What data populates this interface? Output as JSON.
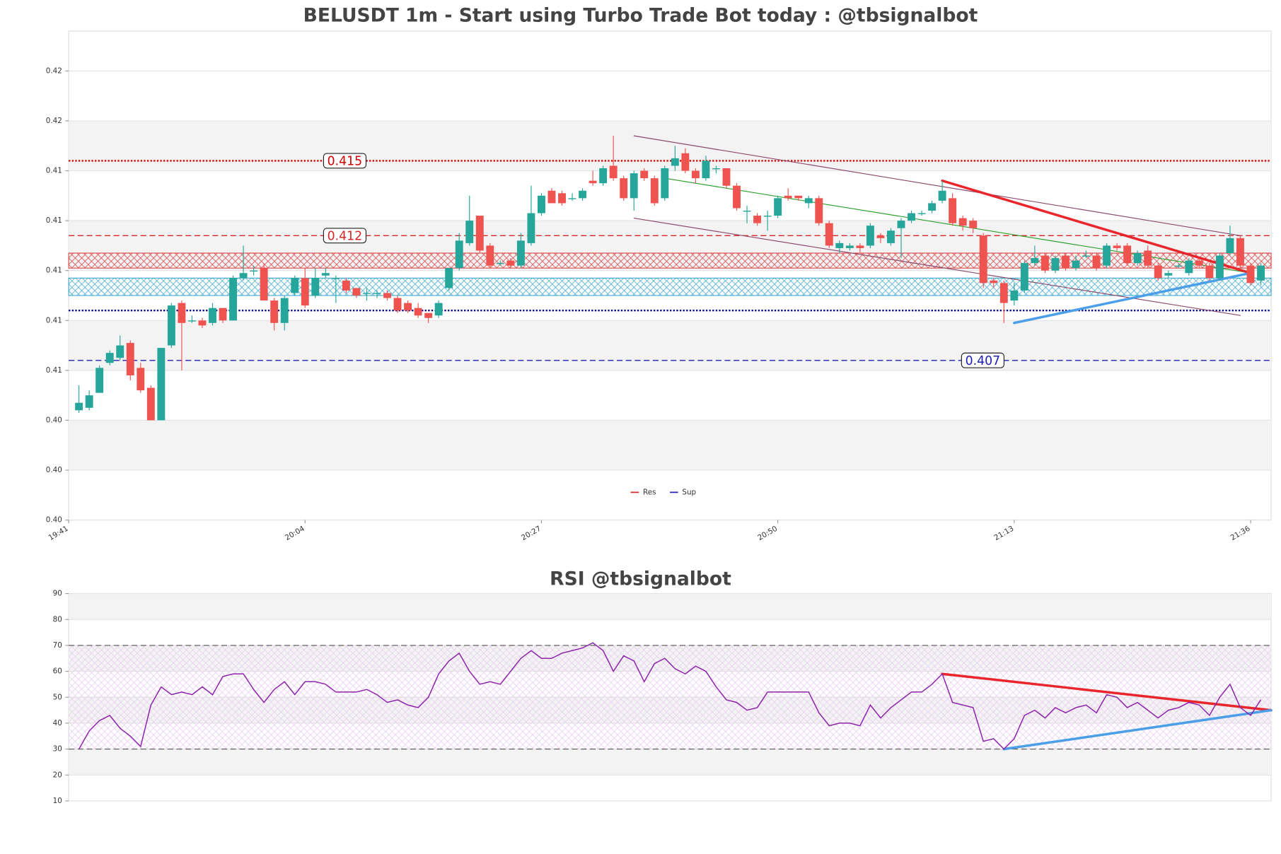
{
  "chart_data": [
    {
      "type": "candlestick",
      "title": "BELUSDT 1m - Start using Turbo Trade Bot today : @tbsignalbot",
      "x": [
        "19:42",
        "19:43",
        "19:44",
        "19:45",
        "19:46",
        "19:47",
        "19:48",
        "19:49",
        "19:50",
        "19:51",
        "19:52",
        "19:53",
        "19:54",
        "19:55",
        "19:56",
        "19:57",
        "19:58",
        "19:59",
        "20:00",
        "20:01",
        "20:02",
        "20:03",
        "20:04",
        "20:05",
        "20:06",
        "20:07",
        "20:08",
        "20:09",
        "20:10",
        "20:11",
        "20:12",
        "20:13",
        "20:14",
        "20:15",
        "20:16",
        "20:17",
        "20:18",
        "20:19",
        "20:20",
        "20:21",
        "20:22",
        "20:23",
        "20:24",
        "20:25",
        "20:26",
        "20:27",
        "20:28",
        "20:29",
        "20:30",
        "20:31",
        "20:32",
        "20:33",
        "20:34",
        "20:35",
        "20:36",
        "20:37",
        "20:38",
        "20:39",
        "20:40",
        "20:41",
        "20:42",
        "20:43",
        "20:44",
        "20:45",
        "20:46",
        "20:47",
        "20:48",
        "20:49",
        "20:50",
        "20:51",
        "20:52",
        "20:53",
        "20:54",
        "20:55",
        "20:56",
        "20:57",
        "20:58",
        "20:59",
        "21:00",
        "21:01",
        "21:02",
        "21:03",
        "21:04",
        "21:05",
        "21:06",
        "21:07",
        "21:08",
        "21:09",
        "21:10",
        "21:11",
        "21:12",
        "21:13",
        "21:14",
        "21:15",
        "21:16",
        "21:17",
        "21:18",
        "21:19",
        "21:20",
        "21:21",
        "21:22",
        "21:23",
        "21:24",
        "21:25",
        "21:26",
        "21:27",
        "21:28",
        "21:29",
        "21:30",
        "21:31",
        "21:32",
        "21:33",
        "21:34",
        "21:35",
        "21:36",
        "21:37"
      ],
      "open": [
        0.405,
        0.4051,
        0.4057,
        0.4069,
        0.4071,
        0.4077,
        0.4067,
        0.4059,
        0.4046,
        0.4076,
        0.4093,
        0.4086,
        0.4086,
        0.4085,
        0.4091,
        0.4086,
        0.4103,
        0.4106,
        0.4107,
        0.4094,
        0.4085,
        0.4097,
        0.4103,
        0.4096,
        0.4104,
        0.4103,
        0.4102,
        0.4099,
        0.4097,
        0.4097,
        0.4097,
        0.4095,
        0.4093,
        0.4091,
        0.4089,
        0.4088,
        0.4099,
        0.4107,
        0.4117,
        0.4128,
        0.4116,
        0.4109,
        0.411,
        0.4108,
        0.4117,
        0.4129,
        0.4138,
        0.4137,
        0.4135,
        0.4135,
        0.4142,
        0.4141,
        0.4148,
        0.4143,
        0.4135,
        0.4146,
        0.4143,
        0.4135,
        0.4148,
        0.4153,
        0.4146,
        0.4143,
        0.4147,
        0.4147,
        0.414,
        0.413,
        0.4128,
        0.4128,
        0.4128,
        0.4136,
        0.4136,
        0.4133,
        0.4135,
        0.4125,
        0.4115,
        0.4115,
        0.4116,
        0.4116,
        0.412,
        0.4117,
        0.4123,
        0.4126,
        0.4129,
        0.413,
        0.4134,
        0.4135,
        0.4127,
        0.4126,
        0.412,
        0.4102,
        0.4101,
        0.4094,
        0.4098,
        0.4109,
        0.4112,
        0.4106,
        0.4112,
        0.4107,
        0.4112,
        0.4112,
        0.4108,
        0.4116,
        0.4116,
        0.4109,
        0.4114,
        0.4108,
        0.4104,
        0.4108,
        0.4105,
        0.411,
        0.4108,
        0.4103,
        0.4113,
        0.4119,
        0.4108,
        0.4102
      ],
      "high": [
        0.406,
        0.4058,
        0.4068,
        0.4074,
        0.408,
        0.4078,
        0.4069,
        0.406,
        0.4075,
        0.4093,
        0.4094,
        0.4088,
        0.4087,
        0.4093,
        0.4091,
        0.4104,
        0.4116,
        0.4108,
        0.4109,
        0.4095,
        0.4096,
        0.4104,
        0.4107,
        0.4107,
        0.4107,
        0.4104,
        0.4103,
        0.4099,
        0.4099,
        0.4098,
        0.4098,
        0.4096,
        0.4094,
        0.4093,
        0.4089,
        0.4094,
        0.4107,
        0.4121,
        0.4136,
        0.4128,
        0.4117,
        0.411,
        0.4111,
        0.4121,
        0.414,
        0.4137,
        0.4139,
        0.4138,
        0.4137,
        0.4139,
        0.4146,
        0.4148,
        0.416,
        0.4144,
        0.4146,
        0.4147,
        0.4144,
        0.4148,
        0.4156,
        0.4155,
        0.4147,
        0.4152,
        0.4148,
        0.4147,
        0.4141,
        0.4132,
        0.4129,
        0.413,
        0.4136,
        0.4139,
        0.4136,
        0.4136,
        0.4136,
        0.4126,
        0.4118,
        0.4117,
        0.4117,
        0.4125,
        0.4121,
        0.4123,
        0.4127,
        0.413,
        0.413,
        0.4134,
        0.4142,
        0.4137,
        0.4128,
        0.4127,
        0.4121,
        0.4103,
        0.4102,
        0.4101,
        0.411,
        0.4116,
        0.4113,
        0.4112,
        0.4113,
        0.4112,
        0.4114,
        0.4113,
        0.4117,
        0.4117,
        0.4117,
        0.4114,
        0.4116,
        0.4109,
        0.4106,
        0.4109,
        0.4111,
        0.4111,
        0.4109,
        0.4113,
        0.4124,
        0.412,
        0.4109,
        0.4109
      ],
      "low": [
        0.4049,
        0.405,
        0.4057,
        0.4068,
        0.407,
        0.4062,
        0.4057,
        0.4046,
        0.4046,
        0.4075,
        0.4066,
        0.4085,
        0.4083,
        0.4084,
        0.4085,
        0.4086,
        0.4102,
        0.4104,
        0.4094,
        0.4082,
        0.4082,
        0.4096,
        0.4091,
        0.4095,
        0.4103,
        0.4093,
        0.4097,
        0.4095,
        0.4094,
        0.4095,
        0.4094,
        0.4089,
        0.4089,
        0.4087,
        0.4085,
        0.4087,
        0.4098,
        0.4106,
        0.4116,
        0.4113,
        0.4107,
        0.4108,
        0.4107,
        0.4107,
        0.4116,
        0.4128,
        0.4133,
        0.4132,
        0.4134,
        0.4134,
        0.414,
        0.414,
        0.4142,
        0.4134,
        0.413,
        0.4142,
        0.4132,
        0.4134,
        0.4146,
        0.4145,
        0.4141,
        0.4142,
        0.4145,
        0.4139,
        0.413,
        0.4125,
        0.4124,
        0.4122,
        0.4127,
        0.4134,
        0.4134,
        0.4131,
        0.4124,
        0.4115,
        0.4113,
        0.4114,
        0.4113,
        0.4115,
        0.4117,
        0.4116,
        0.4111,
        0.4125,
        0.4128,
        0.4129,
        0.4133,
        0.4124,
        0.4122,
        0.4121,
        0.4099,
        0.4099,
        0.4085,
        0.4092,
        0.4097,
        0.4108,
        0.4105,
        0.4105,
        0.4106,
        0.4106,
        0.4111,
        0.4106,
        0.4107,
        0.4114,
        0.4108,
        0.4108,
        0.4107,
        0.4102,
        0.4103,
        0.4107,
        0.4104,
        0.4107,
        0.4102,
        0.4102,
        0.4112,
        0.4107,
        0.41,
        0.41
      ],
      "close": [
        0.4053,
        0.4056,
        0.4067,
        0.4073,
        0.4076,
        0.4064,
        0.4058,
        0.4046,
        0.4075,
        0.4092,
        0.4085,
        0.4086,
        0.4084,
        0.4091,
        0.4086,
        0.4103,
        0.4105,
        0.4106,
        0.4094,
        0.4085,
        0.4095,
        0.4103,
        0.4092,
        0.4103,
        0.4105,
        0.4103,
        0.4098,
        0.4096,
        0.4097,
        0.4097,
        0.4095,
        0.409,
        0.409,
        0.4088,
        0.4087,
        0.4093,
        0.4107,
        0.4118,
        0.4126,
        0.4114,
        0.4108,
        0.4109,
        0.4108,
        0.4118,
        0.4129,
        0.4136,
        0.4133,
        0.4133,
        0.4135,
        0.4138,
        0.4141,
        0.4147,
        0.4143,
        0.4135,
        0.4145,
        0.4143,
        0.4133,
        0.4147,
        0.4151,
        0.4146,
        0.4143,
        0.415,
        0.4147,
        0.414,
        0.4131,
        0.413,
        0.4125,
        0.4128,
        0.4135,
        0.4135,
        0.4135,
        0.4135,
        0.4125,
        0.4116,
        0.4117,
        0.4116,
        0.4115,
        0.4124,
        0.4119,
        0.4122,
        0.4126,
        0.4129,
        0.4129,
        0.4133,
        0.4138,
        0.4125,
        0.4124,
        0.4123,
        0.4101,
        0.4101,
        0.4093,
        0.4098,
        0.4109,
        0.4111,
        0.4106,
        0.4111,
        0.4107,
        0.411,
        0.4112,
        0.4107,
        0.4116,
        0.4115,
        0.4109,
        0.4113,
        0.4108,
        0.4103,
        0.4105,
        0.4108,
        0.411,
        0.4108,
        0.4103,
        0.4112,
        0.4119,
        0.4108,
        0.4101,
        0.4108
      ],
      "up_color": "#26a69a",
      "down_color": "#ef5350",
      "xlim": [
        "19:41",
        "21:38"
      ],
      "xticks": [
        "19:41",
        "20:04",
        "20:27",
        "20:50",
        "21:13",
        "21:36"
      ],
      "ylim": [
        0.4006,
        0.4202
      ],
      "yticks": [
        {
          "value": 0.4006,
          "label": "0.40"
        },
        {
          "value": 0.4026,
          "label": "0.40"
        },
        {
          "value": 0.4046,
          "label": "0.40"
        },
        {
          "value": 0.4066,
          "label": "0.41"
        },
        {
          "value": 0.4086,
          "label": "0.41"
        },
        {
          "value": 0.4106,
          "label": "0.41"
        },
        {
          "value": 0.4126,
          "label": "0.41"
        },
        {
          "value": 0.4146,
          "label": "0.41"
        },
        {
          "value": 0.4166,
          "label": "0.42"
        },
        {
          "value": 0.4186,
          "label": "0.42"
        }
      ],
      "grid": true,
      "levels": [
        {
          "value": 0.415,
          "color": "#d00000",
          "dash": "dotted",
          "show_label": true
        },
        {
          "value": 0.412,
          "color": "#d62728",
          "dash": "dashed",
          "show_label": true
        },
        {
          "value": 0.409,
          "color": "#00008b",
          "dash": "dotted",
          "show_label": false
        },
        {
          "value": 0.407,
          "color": "#1f1fb4",
          "dash": "dashed",
          "show_label": true
        }
      ],
      "zones": [
        {
          "from": 0.4107,
          "to": 0.4113,
          "color": "#d62728"
        },
        {
          "from": 0.4096,
          "to": 0.4103,
          "color": "#1f9ac9"
        }
      ],
      "trendlines": [
        {
          "x": [
            "20:36",
            "21:35"
          ],
          "y": [
            0.416,
            0.412
          ],
          "color": "#8b4a6b",
          "width": 1
        },
        {
          "x": [
            "20:36",
            "21:35"
          ],
          "y": [
            0.4127,
            0.4088
          ],
          "color": "#8b4a6b",
          "width": 1
        },
        {
          "x": [
            "20:39",
            "21:36"
          ],
          "y": [
            0.4143,
            0.4105
          ],
          "color": "#2ca02c",
          "width": 1
        },
        {
          "x": [
            "21:06",
            "21:36"
          ],
          "y": [
            0.4142,
            0.4105
          ],
          "color": "#e8262b",
          "width": 3
        },
        {
          "x": [
            "21:13",
            "21:36"
          ],
          "y": [
            0.4085,
            0.4105
          ],
          "color": "#4a9fe8",
          "width": 3
        }
      ],
      "legend": {
        "loc": "lower center",
        "entries": [
          {
            "name": "Res",
            "color": "#d62728"
          },
          {
            "name": "Sup",
            "color": "#1f1fb4"
          }
        ]
      }
    },
    {
      "type": "line",
      "title": "RSI @tbsignalbot",
      "values": [
        30,
        37,
        41,
        43,
        38,
        35,
        31,
        47,
        54,
        51,
        52,
        51,
        54,
        51,
        58,
        59,
        59,
        53,
        48,
        53,
        56,
        51,
        56,
        56,
        55,
        52,
        52,
        52,
        53,
        51,
        48,
        49,
        47,
        46,
        50,
        59,
        64,
        67,
        60,
        55,
        56,
        55,
        60,
        65,
        68,
        65,
        65,
        67,
        68,
        69,
        71,
        68,
        60,
        66,
        64,
        56,
        63,
        65,
        61,
        59,
        62,
        60,
        54,
        49,
        48,
        45,
        46,
        52,
        52,
        52,
        52,
        52,
        44,
        39,
        40,
        40,
        39,
        47,
        42,
        46,
        49,
        52,
        52,
        55,
        59,
        48,
        47,
        46,
        33,
        34,
        30,
        34,
        43,
        45,
        42,
        46,
        44,
        46,
        47,
        44,
        51,
        50,
        46,
        48,
        45,
        42,
        45,
        46,
        48,
        47,
        43,
        50,
        55,
        46,
        43,
        49
      ],
      "color": "#8e24aa",
      "xlim": [
        "19:41",
        "21:38"
      ],
      "ylim": [
        10,
        90
      ],
      "yticks": [
        10,
        20,
        30,
        40,
        50,
        60,
        70,
        80,
        90
      ],
      "grid": true,
      "hlines": [
        70,
        30
      ],
      "band": [
        30,
        70
      ],
      "trendlines": [
        {
          "x": [
            "21:06",
            "21:38"
          ],
          "y": [
            59,
            45
          ],
          "color": "#e8262b",
          "width": 3
        },
        {
          "x": [
            "21:12",
            "21:38"
          ],
          "y": [
            30,
            45
          ],
          "color": "#4a9fe8",
          "width": 3
        }
      ]
    }
  ]
}
